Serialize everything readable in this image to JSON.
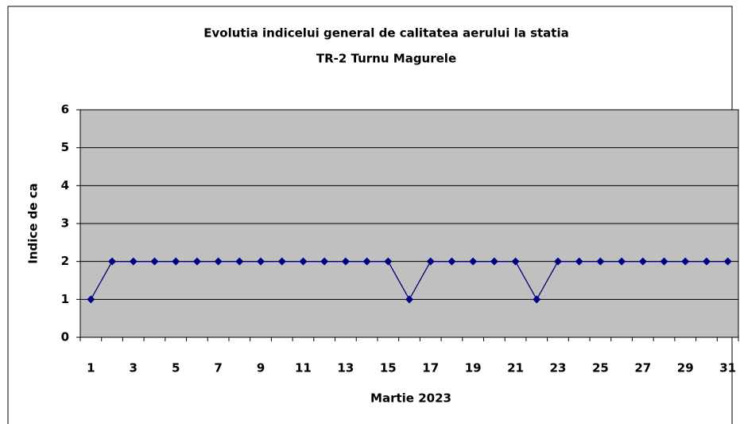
{
  "chart_data": {
    "type": "line",
    "title_lines": [
      "Evolutia indicelui general de calitatea aerului la statia",
      "TR-2 Turnu Magurele"
    ],
    "x_label": "Martie 2023",
    "y_label": "Indice de ca",
    "categories": [
      "1",
      null,
      "3",
      null,
      "5",
      null,
      "7",
      null,
      "9",
      null,
      "11",
      null,
      "13",
      null,
      "15",
      null,
      "17",
      null,
      "19",
      null,
      "21",
      null,
      "23",
      null,
      "25",
      null,
      "27",
      null,
      "29",
      null,
      "31"
    ],
    "series": [
      {
        "color": "#000080",
        "values": [
          1,
          2,
          2,
          2,
          2,
          2,
          2,
          2,
          2,
          2,
          2,
          2,
          2,
          2,
          2,
          1,
          2,
          2,
          2,
          2,
          2,
          1,
          2,
          2,
          2,
          2,
          2,
          2,
          2,
          2,
          2
        ]
      }
    ],
    "ylim": [
      0,
      6
    ],
    "yticks": [
      0,
      1,
      2,
      3,
      4,
      5,
      6
    ],
    "grid": true,
    "plot_background": "#c0c0c0"
  }
}
